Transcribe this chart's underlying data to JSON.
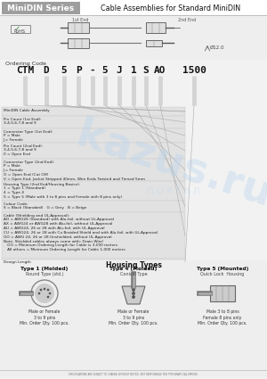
{
  "title_box_text": "MiniDIN Series",
  "title_box_color": "#9e9e9e",
  "title_main": "Cable Assemblies for Standard MiniDIN",
  "bg": "#f2f2f2",
  "white": "#ffffff",
  "ordering_code_label": "Ordering Code",
  "code_parts": [
    "CTM",
    "D",
    "5",
    "P",
    "-",
    "5",
    "J",
    "1",
    "S",
    "AO",
    "1500"
  ],
  "bar_color": "#c8c8c8",
  "section_bg": "#e2e2e2",
  "section_border": "#cccccc",
  "watermark_text": "kazus.ru",
  "watermark_color": "#b8d4ee",
  "portal_text": "П О Р Т А Л",
  "info_sections": [
    {
      "title": "MiniDIN Cable Assembly",
      "body": "",
      "bar_idx": [
        0,
        1
      ]
    },
    {
      "title": "Pin Count (1st End):",
      "body": "3,4,5,6,7,8 and 9",
      "bar_idx": [
        2
      ]
    },
    {
      "title": "Connector Type (1st End):",
      "body": "P = Male\nJ = Female",
      "bar_idx": [
        3
      ]
    },
    {
      "title": "Pin Count (2nd End):",
      "body": "3,4,5,6,7,8 and 9\n0 = Open End",
      "bar_idx": [
        5
      ]
    },
    {
      "title": "Connector Type (2nd End):",
      "body": "P = Male\nJ = Female\nO = Open End (Cut Off)\nV = Open End, Jacket Stripped 40mm, Wire Ends Twisted and Tinned 5mm",
      "bar_idx": [
        6
      ]
    },
    {
      "title": "Housing Type (2nd End/Housing Basics):",
      "body": "1 = Type 1 (Standard)\n4 = Type 4\n5 = Type 5 (Male with 3 to 8 pins and Female with 8 pins only)",
      "bar_idx": [
        7
      ]
    },
    {
      "title": "Colour Code:",
      "body": "S = Black (Standard)   G = Grey   B = Beige",
      "bar_idx": [
        8
      ]
    }
  ],
  "cable_section": {
    "title": "Cable (Shielding and UL-Approval):",
    "body": "AO = AWG26 (Standard) with Alu-foil, without UL-Approval\nAX = AWG24 or AWG28 with Alu-foil, without UL-Approval\nAU = AWG24, 26 or 28 with Alu-foil, with UL-Approval\nCU = AWG24, 26 or 28 with Cu Braided Shield and with Alu-foil, with UL-Approval\nOO = AWG 24, 26 or 28 Unshielded, without UL-Approval\nNote: Shielded cables always come with: Drain Wire!\n   OO = Minimum Ordering Length for Cable is 3,000 meters\n   All others = Minimum Ordering Length for Cable 1,000 meters",
    "bar_idx": [
      9
    ]
  },
  "design_length": {
    "title": "Design Length",
    "bar_idx": [
      10
    ]
  },
  "housing_types": [
    {
      "title": "Type 1 (Molded)",
      "subtitle": "Round Type (std.)",
      "desc": "Male or Female\n3 to 9 pins\nMin. Order Qty. 100 pcs.",
      "img_type": "round"
    },
    {
      "title": "Type 4 (Molded)",
      "subtitle": "Conical Type",
      "desc": "Male or Female\n3 to 9 pins\nMin. Order Qty. 100 pcs.",
      "img_type": "conical"
    },
    {
      "title": "Type 5 (Mounted)",
      "subtitle": "Quick Lock  Housing",
      "desc": "Male 3 to 8 pins\nFemale 8 pins only\nMin. Order Qty. 100 pcs.",
      "img_type": "quicklock"
    }
  ],
  "footer_text": "SPECIFICATIONS ARE SUBJECT TO CHANGE WITHOUT NOTICE. NOT RESPONSIBLE FOR TYPOGRAPHICAL ERRORS."
}
